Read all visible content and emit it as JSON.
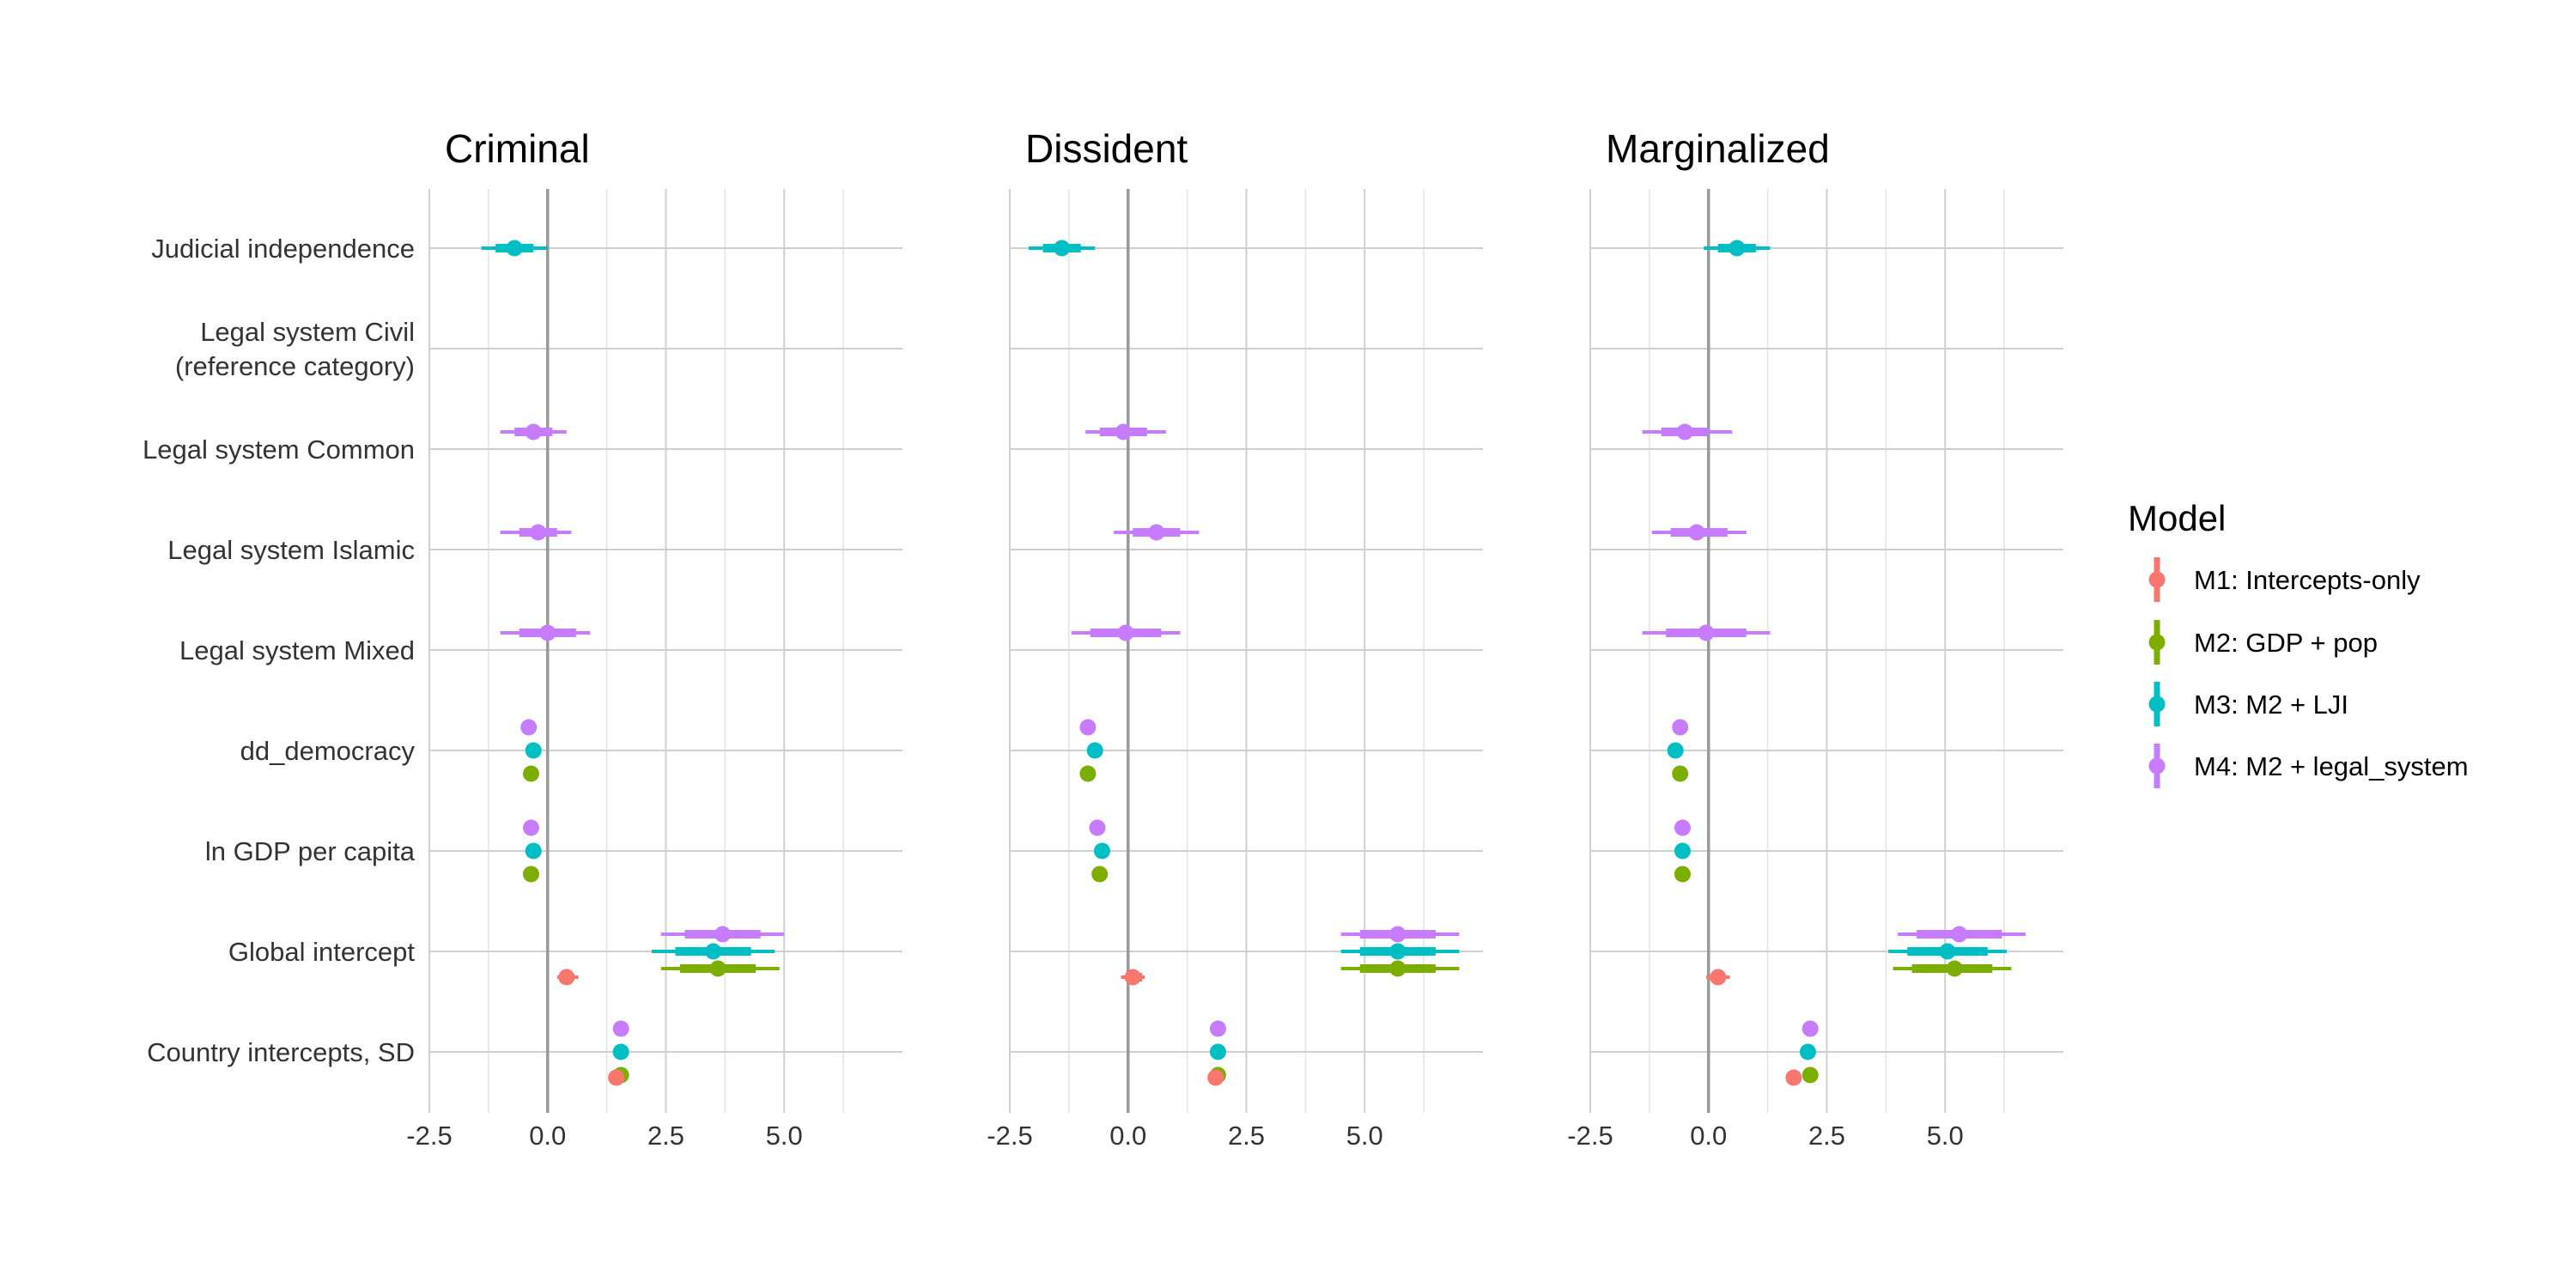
{
  "chart_data": {
    "type": "scatter",
    "subtype": "coefficient-plot-with-intervals",
    "xlim": [
      -2.5,
      7.5
    ],
    "x_ticks": [
      "-2.5",
      "0.0",
      "2.5",
      "5.0"
    ],
    "x_tick_values": [
      -2.5,
      0,
      2.5,
      5
    ],
    "x_minor_values": [
      -1.25,
      1.25,
      3.75,
      6.25
    ],
    "zero_line": 0,
    "grid": true,
    "rows": [
      "Judicial independence",
      "Legal system Civil\n(reference category)",
      "Legal system Common",
      "Legal system Islamic",
      "Legal system Mixed",
      "dd_democracy",
      "ln GDP per capita",
      "Global intercept",
      "Country intercepts, SD"
    ],
    "legend": {
      "title": "Model",
      "position": "right",
      "entries": [
        {
          "key": "M1",
          "label": "M1: Intercepts-only",
          "color": "#F8766D"
        },
        {
          "key": "M2",
          "label": "M2: GDP + pop",
          "color": "#7CAE00"
        },
        {
          "key": "M3",
          "label": "M3: M2 + LJI",
          "color": "#00BFC4"
        },
        {
          "key": "M4",
          "label": "M4: M2 + legal_system",
          "color": "#C77CFF"
        }
      ]
    },
    "panels": [
      {
        "title": "Criminal",
        "points": [
          {
            "row": 0,
            "model": "M3",
            "est": -0.7,
            "inner": [
              -1.1,
              -0.3
            ],
            "outer": [
              -1.4,
              0.0
            ]
          },
          {
            "row": 2,
            "model": "M4",
            "est": -0.3,
            "inner": [
              -0.7,
              0.1
            ],
            "outer": [
              -1.0,
              0.4
            ]
          },
          {
            "row": 3,
            "model": "M4",
            "est": -0.2,
            "inner": [
              -0.6,
              0.2
            ],
            "outer": [
              -1.0,
              0.5
            ]
          },
          {
            "row": 4,
            "model": "M4",
            "est": 0.0,
            "inner": [
              -0.6,
              0.6
            ],
            "outer": [
              -1.0,
              0.9
            ]
          },
          {
            "row": 5,
            "model": "M4",
            "est": -0.4
          },
          {
            "row": 5,
            "model": "M3",
            "est": -0.3
          },
          {
            "row": 5,
            "model": "M2",
            "est": -0.35
          },
          {
            "row": 6,
            "model": "M4",
            "est": -0.35
          },
          {
            "row": 6,
            "model": "M3",
            "est": -0.3
          },
          {
            "row": 6,
            "model": "M2",
            "est": -0.35
          },
          {
            "row": 7,
            "model": "M4",
            "est": 3.7,
            "inner": [
              2.9,
              4.5
            ],
            "outer": [
              2.4,
              5.0
            ]
          },
          {
            "row": 7,
            "model": "M3",
            "est": 3.5,
            "inner": [
              2.7,
              4.3
            ],
            "outer": [
              2.2,
              4.8
            ]
          },
          {
            "row": 7,
            "model": "M2",
            "est": 3.6,
            "inner": [
              2.8,
              4.4
            ],
            "outer": [
              2.4,
              4.9
            ]
          },
          {
            "row": 7,
            "model": "M1",
            "est": 0.4,
            "inner": [
              0.25,
              0.55
            ],
            "outer": [
              0.2,
              0.65
            ]
          },
          {
            "row": 8,
            "model": "M4",
            "est": 1.55
          },
          {
            "row": 8,
            "model": "M3",
            "est": 1.55
          },
          {
            "row": 8,
            "model": "M2",
            "est": 1.55
          },
          {
            "row": 8,
            "model": "M1",
            "est": 1.45
          }
        ]
      },
      {
        "title": "Dissident",
        "points": [
          {
            "row": 0,
            "model": "M3",
            "est": -1.4,
            "inner": [
              -1.8,
              -1.0
            ],
            "outer": [
              -2.1,
              -0.7
            ]
          },
          {
            "row": 2,
            "model": "M4",
            "est": -0.1,
            "inner": [
              -0.6,
              0.4
            ],
            "outer": [
              -0.9,
              0.8
            ]
          },
          {
            "row": 3,
            "model": "M4",
            "est": 0.6,
            "inner": [
              0.1,
              1.1
            ],
            "outer": [
              -0.3,
              1.5
            ]
          },
          {
            "row": 4,
            "model": "M4",
            "est": -0.05,
            "inner": [
              -0.8,
              0.7
            ],
            "outer": [
              -1.2,
              1.1
            ]
          },
          {
            "row": 5,
            "model": "M4",
            "est": -0.85
          },
          {
            "row": 5,
            "model": "M3",
            "est": -0.7
          },
          {
            "row": 5,
            "model": "M2",
            "est": -0.85
          },
          {
            "row": 6,
            "model": "M4",
            "est": -0.65
          },
          {
            "row": 6,
            "model": "M3",
            "est": -0.55
          },
          {
            "row": 6,
            "model": "M2",
            "est": -0.6
          },
          {
            "row": 7,
            "model": "M4",
            "est": 5.7,
            "inner": [
              4.9,
              6.5
            ],
            "outer": [
              4.5,
              7.0
            ]
          },
          {
            "row": 7,
            "model": "M3",
            "est": 5.7,
            "inner": [
              4.9,
              6.5
            ],
            "outer": [
              4.5,
              7.0
            ]
          },
          {
            "row": 7,
            "model": "M2",
            "est": 5.7,
            "inner": [
              4.9,
              6.5
            ],
            "outer": [
              4.5,
              7.0
            ]
          },
          {
            "row": 7,
            "model": "M1",
            "est": 0.1,
            "inner": [
              -0.05,
              0.3
            ],
            "outer": [
              -0.15,
              0.35
            ]
          },
          {
            "row": 8,
            "model": "M4",
            "est": 1.9
          },
          {
            "row": 8,
            "model": "M3",
            "est": 1.9
          },
          {
            "row": 8,
            "model": "M2",
            "est": 1.9
          },
          {
            "row": 8,
            "model": "M1",
            "est": 1.85
          }
        ]
      },
      {
        "title": "Marginalized",
        "points": [
          {
            "row": 0,
            "model": "M3",
            "est": 0.6,
            "inner": [
              0.2,
              1.0
            ],
            "outer": [
              -0.1,
              1.3
            ]
          },
          {
            "row": 2,
            "model": "M4",
            "est": -0.5,
            "inner": [
              -1.0,
              0.0
            ],
            "outer": [
              -1.4,
              0.5
            ]
          },
          {
            "row": 3,
            "model": "M4",
            "est": -0.25,
            "inner": [
              -0.8,
              0.4
            ],
            "outer": [
              -1.2,
              0.8
            ]
          },
          {
            "row": 4,
            "model": "M4",
            "est": -0.05,
            "inner": [
              -0.9,
              0.8
            ],
            "outer": [
              -1.4,
              1.3
            ]
          },
          {
            "row": 5,
            "model": "M4",
            "est": -0.6
          },
          {
            "row": 5,
            "model": "M3",
            "est": -0.7
          },
          {
            "row": 5,
            "model": "M2",
            "est": -0.6
          },
          {
            "row": 6,
            "model": "M4",
            "est": -0.55
          },
          {
            "row": 6,
            "model": "M3",
            "est": -0.55
          },
          {
            "row": 6,
            "model": "M2",
            "est": -0.55
          },
          {
            "row": 7,
            "model": "M4",
            "est": 5.3,
            "inner": [
              4.4,
              6.2
            ],
            "outer": [
              4.0,
              6.7
            ]
          },
          {
            "row": 7,
            "model": "M3",
            "est": 5.05,
            "inner": [
              4.2,
              5.9
            ],
            "outer": [
              3.8,
              6.3
            ]
          },
          {
            "row": 7,
            "model": "M2",
            "est": 5.2,
            "inner": [
              4.3,
              6.0
            ],
            "outer": [
              3.9,
              6.4
            ]
          },
          {
            "row": 7,
            "model": "M1",
            "est": 0.2,
            "inner": [
              0.05,
              0.35
            ],
            "outer": [
              -0.05,
              0.45
            ]
          },
          {
            "row": 8,
            "model": "M4",
            "est": 2.15
          },
          {
            "row": 8,
            "model": "M3",
            "est": 2.1
          },
          {
            "row": 8,
            "model": "M2",
            "est": 2.15
          },
          {
            "row": 8,
            "model": "M1",
            "est": 1.8
          }
        ]
      }
    ]
  }
}
